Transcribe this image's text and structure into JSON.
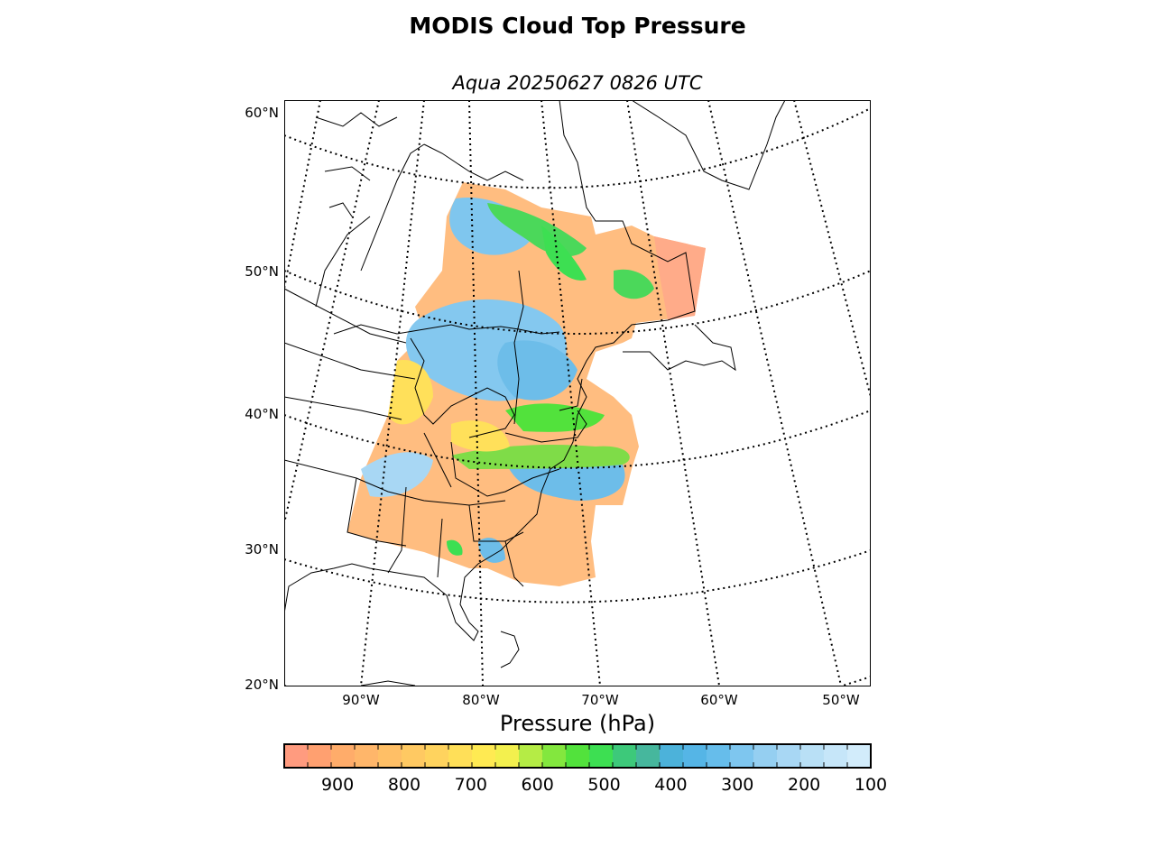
{
  "title": "MODIS Cloud Top Pressure",
  "subtitle": "Aqua 20250627 0826 UTC",
  "map": {
    "projection": "lambert-conformal",
    "lat_labels": [
      "60°N",
      "50°N",
      "40°N",
      "30°N",
      "20°N"
    ],
    "lon_labels": [
      "90°W",
      "80°W",
      "70°W",
      "60°W",
      "50°W"
    ],
    "graticule_style": "dotted",
    "coastline_color": "#000000"
  },
  "colorbar": {
    "label": "Pressure (hPa)",
    "range": [
      980,
      100
    ],
    "tick_labels": [
      "900",
      "800",
      "700",
      "600",
      "500",
      "400",
      "300",
      "200",
      "100"
    ],
    "colors": [
      "#ff9b7f",
      "#ffa070",
      "#ffac6a",
      "#ffb66a",
      "#ffbf66",
      "#ffc962",
      "#ffd35e",
      "#ffdf58",
      "#ffea52",
      "#f3f04e",
      "#b5ec45",
      "#83e73e",
      "#52e23c",
      "#3ddf52",
      "#3dc97a",
      "#46b79d",
      "#4cb2da",
      "#55b5e6",
      "#66bdeb",
      "#7ec6ef",
      "#95cff1",
      "#a8d7f4",
      "#b9e0f6",
      "#c6e6f9",
      "#d2ecfb"
    ]
  }
}
